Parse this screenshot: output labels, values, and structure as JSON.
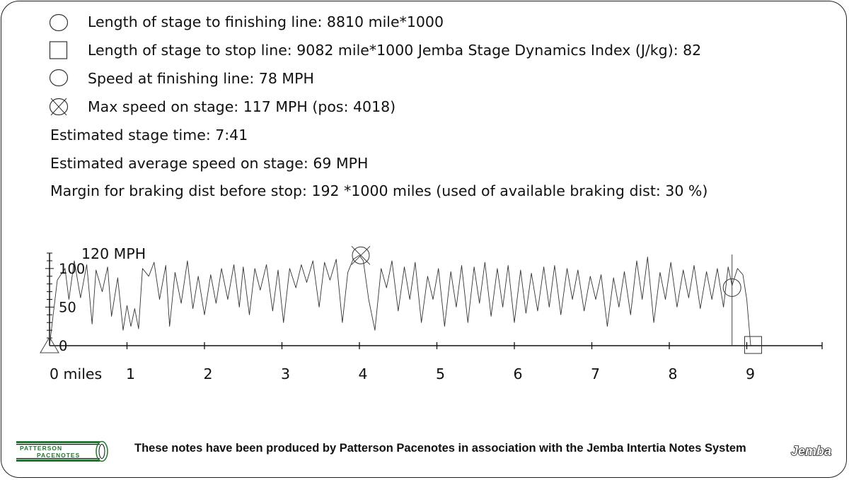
{
  "info": {
    "finish_length": "Length of stage to finishing line: 8810 mile*1000",
    "stop_length": "Length of stage to stop line: 9082 mile*1000 Jemba Stage Dynamics Index (J/kg): 82",
    "finish_speed": "Speed at finishing line: 78 MPH",
    "max_speed": "Max speed on stage: 117 MPH (pos: 4018)",
    "stage_time": "Estimated stage time: 7:41",
    "avg_speed": "Estimated average speed on stage: 69 MPH",
    "braking_margin": "Margin for braking dist before stop: 192 *1000 miles (used of available braking dist: 30 %)"
  },
  "footer": {
    "text": "These notes have been produced by Patterson Pacenotes in association with the Jemba Intertia Notes System",
    "logo_left_line1": "PATTERSON",
    "logo_left_line2": "PACENOTES",
    "logo_right": "Jemba"
  },
  "chart_data": {
    "type": "line",
    "xlabel": "",
    "ylabel": "",
    "x_unit_label": "0 miles",
    "y_unit_label": "120 MPH",
    "x_ticks": [
      "0 miles",
      "1",
      "2",
      "3",
      "4",
      "5",
      "6",
      "7",
      "8",
      "9"
    ],
    "y_ticks": [
      "0",
      "50",
      "100"
    ],
    "xlim": [
      0,
      10
    ],
    "ylim": [
      0,
      120
    ],
    "markers": {
      "max_speed": {
        "x": 4.018,
        "y": 117
      },
      "finish": {
        "x": 8.81,
        "y": 78
      },
      "stop": {
        "x": 9.082,
        "y": 0
      }
    },
    "series": [
      {
        "x": [
          0,
          0.1,
          0.2,
          0.25,
          0.32,
          0.4,
          0.48,
          0.55,
          0.6,
          0.68,
          0.75,
          0.8,
          0.88,
          0.95,
          1.0,
          1.05,
          1.1,
          1.15,
          1.2,
          1.28,
          1.35,
          1.42,
          1.5,
          1.55,
          1.62,
          1.7,
          1.78,
          1.85,
          1.92,
          2.0,
          2.08,
          2.15,
          2.22,
          2.3,
          2.38,
          2.45,
          2.5,
          2.58,
          2.65,
          2.72,
          2.8,
          2.88,
          2.95,
          3.02,
          3.1,
          3.18,
          3.25,
          3.32,
          3.4,
          3.48,
          3.55,
          3.62,
          3.7,
          3.78,
          3.85,
          3.92,
          4.0,
          4.05,
          4.12,
          4.2,
          4.28,
          4.35,
          4.42,
          4.5,
          4.58,
          4.65,
          4.72,
          4.8,
          4.88,
          4.95,
          5.02,
          5.1,
          5.18,
          5.25,
          5.32,
          5.4,
          5.48,
          5.55,
          5.62,
          5.7,
          5.78,
          5.85,
          5.92,
          6.0,
          6.08,
          6.15,
          6.22,
          6.3,
          6.38,
          6.45,
          6.52,
          6.6,
          6.68,
          6.75,
          6.82,
          6.9,
          6.98,
          7.05,
          7.12,
          7.2,
          7.28,
          7.35,
          7.42,
          7.5,
          7.58,
          7.65,
          7.72,
          7.8,
          7.88,
          7.95,
          8.02,
          8.1,
          8.18,
          8.25,
          8.32,
          8.4,
          8.48,
          8.55,
          8.62,
          8.7,
          8.76,
          8.81,
          8.88,
          8.95,
          9.0,
          9.05
        ],
        "y": [
          0,
          85,
          100,
          60,
          110,
          62,
          105,
          28,
          98,
          70,
          102,
          38,
          88,
          20,
          52,
          25,
          48,
          22,
          100,
          90,
          108,
          60,
          104,
          25,
          95,
          55,
          110,
          48,
          90,
          40,
          92,
          55,
          100,
          60,
          105,
          50,
          102,
          40,
          100,
          72,
          105,
          45,
          98,
          30,
          100,
          75,
          105,
          82,
          110,
          50,
          108,
          85,
          112,
          30,
          95,
          112,
          117,
          110,
          60,
          20,
          100,
          75,
          110,
          45,
          102,
          60,
          108,
          30,
          90,
          60,
          100,
          25,
          96,
          50,
          104,
          30,
          102,
          55,
          108,
          38,
          100,
          50,
          104,
          30,
          98,
          42,
          94,
          45,
          102,
          50,
          104,
          40,
          100,
          60,
          98,
          45,
          90,
          60,
          92,
          25,
          88,
          50,
          96,
          40,
          110,
          60,
          115,
          30,
          95,
          60,
          108,
          50,
          98,
          62,
          104,
          48,
          96,
          60,
          100,
          50,
          102,
          78,
          100,
          92,
          60,
          0
        ]
      }
    ]
  }
}
